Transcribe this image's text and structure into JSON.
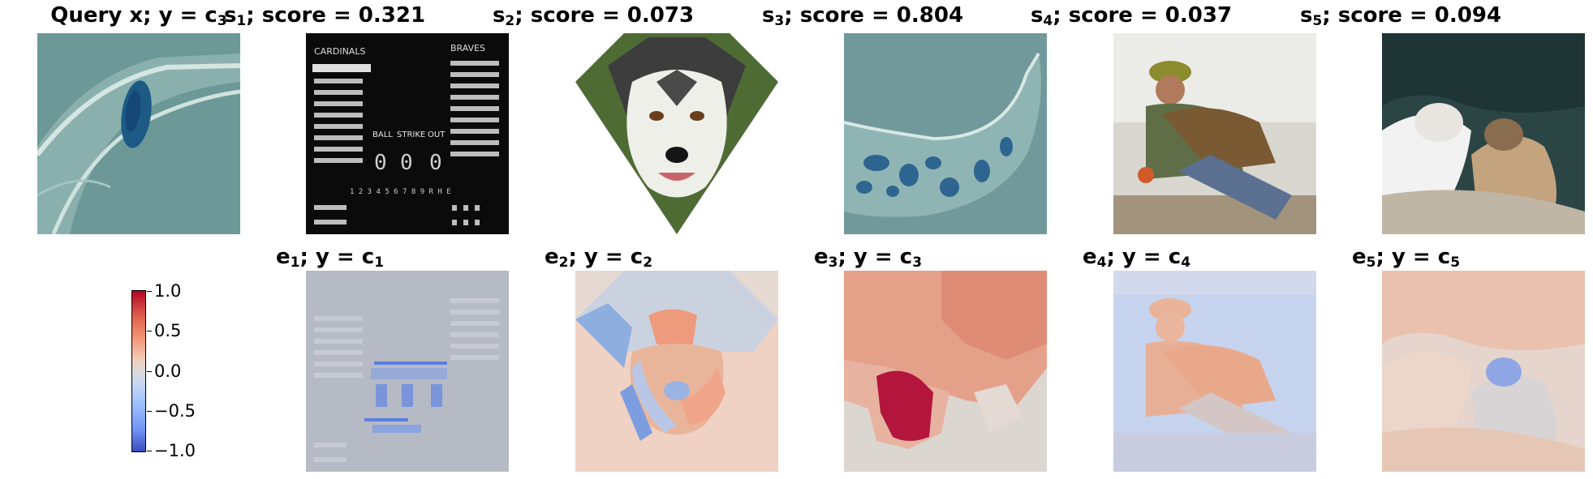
{
  "top_row": [
    {
      "prefix": "Query x; y = c",
      "sub": "3",
      "suffix": ""
    },
    {
      "prefix": "s",
      "sub": "1",
      "suffix": "; score = 0.321"
    },
    {
      "prefix": "s",
      "sub": "2",
      "suffix": "; score = 0.073"
    },
    {
      "prefix": "s",
      "sub": "3",
      "suffix": "; score = 0.804"
    },
    {
      "prefix": "s",
      "sub": "4",
      "suffix": "; score = 0.037"
    },
    {
      "prefix": "s",
      "sub": "5",
      "suffix": "; score = 0.094"
    }
  ],
  "bottom_row": [
    {
      "prefix": "e",
      "sub": "1",
      "mid": "; y = c",
      "sub2": "1"
    },
    {
      "prefix": "e",
      "sub": "2",
      "mid": "; y = c",
      "sub2": "2"
    },
    {
      "prefix": "e",
      "sub": "3",
      "mid": "; y = c",
      "sub2": "3"
    },
    {
      "prefix": "e",
      "sub": "4",
      "mid": "; y = c",
      "sub2": "4"
    },
    {
      "prefix": "e",
      "sub": "5",
      "mid": "; y = c",
      "sub2": "5"
    }
  ],
  "colorbar": {
    "ticks": [
      "1.0",
      "0.5",
      "0.0",
      "−0.5",
      "−1.0"
    ],
    "colormap": [
      "#3b4cc0",
      "#dddcdc",
      "#b40426"
    ]
  },
  "scoreboard": {
    "headers": [
      "CARDINALS",
      "BRAVES"
    ],
    "count_labels": [
      "BALL",
      "STRIKE",
      "OUT"
    ],
    "count_values": [
      "0",
      "0",
      "0"
    ],
    "innings": "1 2 3 4 5 6 7 8 9 R H E"
  },
  "colors": {
    "red": "#b40426",
    "blue": "#3b4cc0",
    "neutral": "#dddcdc"
  }
}
